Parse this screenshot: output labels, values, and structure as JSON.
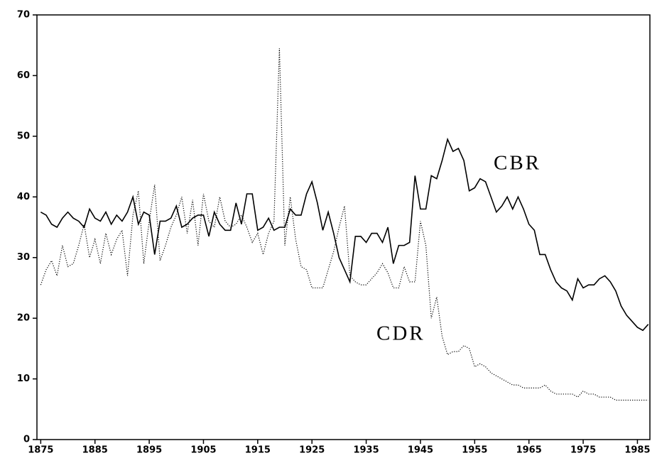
{
  "chart_data": {
    "type": "line",
    "x": [
      1875,
      1876,
      1877,
      1878,
      1879,
      1880,
      1881,
      1882,
      1883,
      1884,
      1885,
      1886,
      1887,
      1888,
      1889,
      1890,
      1891,
      1892,
      1893,
      1894,
      1895,
      1896,
      1897,
      1898,
      1899,
      1900,
      1901,
      1902,
      1903,
      1904,
      1905,
      1906,
      1907,
      1908,
      1909,
      1910,
      1911,
      1912,
      1913,
      1914,
      1915,
      1916,
      1917,
      1918,
      1919,
      1920,
      1921,
      1922,
      1923,
      1924,
      1925,
      1926,
      1927,
      1928,
      1929,
      1930,
      1931,
      1932,
      1933,
      1934,
      1935,
      1936,
      1937,
      1938,
      1939,
      1940,
      1941,
      1942,
      1943,
      1944,
      1945,
      1946,
      1947,
      1948,
      1949,
      1950,
      1951,
      1952,
      1953,
      1954,
      1955,
      1956,
      1957,
      1958,
      1959,
      1960,
      1961,
      1962,
      1963,
      1964,
      1965,
      1966,
      1967,
      1968,
      1969,
      1970,
      1971,
      1972,
      1973,
      1974,
      1975,
      1976,
      1977,
      1978,
      1979,
      1980,
      1981,
      1982,
      1983,
      1984,
      1985,
      1986,
      1987
    ],
    "series": [
      {
        "name": "CBR",
        "color": "#000000",
        "dash": "solid",
        "values": [
          37.5,
          37,
          35.5,
          35,
          36.5,
          37.5,
          36.5,
          36,
          35,
          38,
          36.5,
          36,
          37.5,
          35.5,
          37,
          36,
          37.5,
          40,
          35.5,
          37.5,
          37,
          30.5,
          36,
          36,
          36.5,
          38.5,
          35,
          35.5,
          36.5,
          37,
          37,
          33.5,
          37.5,
          35.5,
          34.5,
          34.5,
          39,
          35.5,
          40.5,
          40.5,
          34.5,
          35,
          36.5,
          34.5,
          35,
          35,
          38,
          37,
          37,
          40.5,
          42.5,
          39,
          34.5,
          37.5,
          34,
          30,
          28,
          26,
          33.5,
          33.5,
          32.5,
          34,
          34,
          32.5,
          35,
          29,
          32,
          32,
          32.5,
          43.5,
          38,
          38,
          43.5,
          43,
          46,
          49.5,
          47.5,
          48,
          46,
          41,
          41.5,
          43,
          42.5,
          40,
          37.5,
          38.5,
          40,
          38,
          40,
          38,
          35.5,
          34.5,
          30.5,
          30.5,
          28,
          26,
          25,
          24.5,
          23,
          26.5,
          25,
          25.5,
          25.5,
          26.5,
          27,
          26,
          24.5,
          22,
          20.5,
          19.5,
          18.5,
          18,
          19
        ]
      },
      {
        "name": "CDR",
        "color": "#000000",
        "dash": "dotted",
        "values": [
          25.5,
          28,
          29.5,
          27,
          32,
          28.5,
          29,
          32,
          35.5,
          30,
          33,
          29,
          34,
          30.5,
          33,
          34.5,
          27,
          37,
          41,
          29,
          36,
          42,
          29.5,
          32,
          35,
          37,
          40,
          34,
          39.5,
          32,
          40.5,
          36,
          35,
          40,
          36,
          35,
          35.5,
          37,
          35,
          32.5,
          34,
          30.5,
          34,
          36,
          64.5,
          32,
          40,
          33,
          28.5,
          28,
          25,
          25,
          25,
          28,
          31,
          35,
          38.5,
          27,
          26,
          25.5,
          25.5,
          26.5,
          27.5,
          29,
          27.5,
          25,
          25,
          28.5,
          26,
          26,
          36,
          32,
          20,
          23.5,
          17,
          14,
          14.5,
          14.5,
          15.5,
          15,
          12,
          12.5,
          12,
          11,
          10.5,
          10,
          9.5,
          9,
          9,
          8.5,
          8.5,
          8.5,
          8.5,
          9,
          8,
          7.5,
          7.5,
          7.5,
          7.5,
          7,
          8,
          7.5,
          7.5,
          7,
          7,
          7,
          6.5,
          6.5,
          6.5,
          6.5,
          6.5,
          6.5,
          6.5
        ]
      }
    ],
    "xlim": [
      1874.3,
      1987.3
    ],
    "xticks": [
      1875,
      1885,
      1895,
      1905,
      1915,
      1925,
      1935,
      1945,
      1955,
      1965,
      1975,
      1985
    ],
    "ylim": [
      0,
      70
    ],
    "yticks": [
      0,
      10,
      20,
      30,
      40,
      50,
      60,
      70
    ]
  }
}
